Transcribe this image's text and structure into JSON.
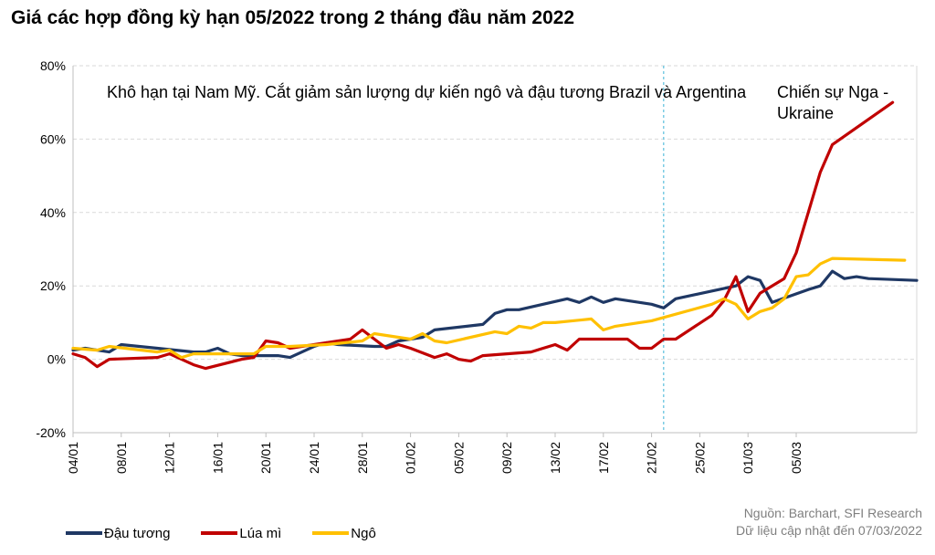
{
  "title": "Giá các hợp đồng kỳ hạn 05/2022 trong 2 tháng đầu năm 2022",
  "annotations": {
    "drought": "Khô hạn tại Nam Mỹ. Cắt giảm sản lượng dự kiến ngô và đậu tương Brazil và Argentina",
    "war": "Chiến sự Nga - Ukraine"
  },
  "source": {
    "line1": "Nguồn: Barchart, SFI Research",
    "line2": "Dữ liệu cập nhật đến 07/03/2022"
  },
  "colors": {
    "soy": "#1f3864",
    "wheat": "#c00000",
    "corn": "#ffc000",
    "grid": "#d9d9d9",
    "axis": "#bfbfbf",
    "event_line": "#5bc0de"
  },
  "chart_data": {
    "type": "line",
    "title": "Giá các hợp đồng kỳ hạn 05/2022 trong 2 tháng đầu năm 2022",
    "xlabel": "",
    "ylabel": "",
    "ylim": [
      -20,
      80
    ],
    "yticks": [
      -20,
      0,
      20,
      40,
      60,
      80
    ],
    "ytick_labels": [
      "-20%",
      "0%",
      "20%",
      "40%",
      "60%",
      "80%"
    ],
    "xtick_labels": [
      "04/01",
      "08/01",
      "12/01",
      "16/01",
      "20/01",
      "24/01",
      "28/01",
      "01/02",
      "05/02",
      "09/02",
      "13/02",
      "17/02",
      "21/02",
      "25/02",
      "01/03",
      "05/03"
    ],
    "x_end_day": 66,
    "event_day": 52,
    "grid": "horizontal dashed",
    "legend_position": "bottom-left",
    "series": [
      {
        "name": "Đậu tương",
        "color": "#1f3864",
        "points": [
          [
            3,
            2.5
          ],
          [
            4,
            3
          ],
          [
            5,
            2.5
          ],
          [
            6,
            2
          ],
          [
            7,
            4
          ],
          [
            10,
            3
          ],
          [
            13,
            2
          ],
          [
            14,
            2
          ],
          [
            15,
            3
          ],
          [
            16,
            1.5
          ],
          [
            17,
            1
          ],
          [
            20,
            1
          ],
          [
            21,
            0.5
          ],
          [
            23,
            3.5
          ],
          [
            24,
            4.5
          ],
          [
            25,
            4
          ],
          [
            28,
            3.5
          ],
          [
            29,
            3.5
          ],
          [
            30,
            5
          ],
          [
            31,
            5.5
          ],
          [
            32,
            6
          ],
          [
            33,
            8
          ],
          [
            37,
            9.5
          ],
          [
            38,
            12.5
          ],
          [
            39,
            13.5
          ],
          [
            40,
            13.5
          ],
          [
            44,
            16.5
          ],
          [
            45,
            15.5
          ],
          [
            46,
            17
          ],
          [
            47,
            15.5
          ],
          [
            48,
            16.5
          ],
          [
            51,
            15
          ],
          [
            52,
            14
          ],
          [
            53,
            16.5
          ],
          [
            58,
            20
          ],
          [
            59,
            22.5
          ],
          [
            60,
            21.5
          ],
          [
            61,
            15.5
          ],
          [
            64,
            19
          ],
          [
            65,
            20
          ],
          [
            66,
            24
          ],
          [
            67,
            22
          ],
          [
            68,
            22.5
          ],
          [
            69,
            22
          ],
          [
            73,
            21.5
          ]
        ]
      },
      {
        "name": "Lúa mì",
        "color": "#c00000",
        "points": [
          [
            3,
            1.5
          ],
          [
            4,
            0.5
          ],
          [
            5,
            -2
          ],
          [
            6,
            0
          ],
          [
            10,
            0.5
          ],
          [
            11,
            1.5
          ],
          [
            12,
            0
          ],
          [
            13,
            -1.5
          ],
          [
            14,
            -2.5
          ],
          [
            17,
            0
          ],
          [
            18,
            0.5
          ],
          [
            19,
            5
          ],
          [
            20,
            4.5
          ],
          [
            21,
            3
          ],
          [
            24,
            4.5
          ],
          [
            26,
            5.5
          ],
          [
            27,
            8
          ],
          [
            28,
            5.5
          ],
          [
            29,
            3
          ],
          [
            30,
            4
          ],
          [
            31,
            3
          ],
          [
            33,
            0.5
          ],
          [
            34,
            1.5
          ],
          [
            35,
            0
          ],
          [
            36,
            -0.5
          ],
          [
            37,
            1
          ],
          [
            41,
            2
          ],
          [
            42,
            3
          ],
          [
            43,
            4
          ],
          [
            44,
            2.5
          ],
          [
            45,
            5.5
          ],
          [
            49,
            5.5
          ],
          [
            50,
            3
          ],
          [
            51,
            3
          ],
          [
            52,
            5.5
          ],
          [
            53,
            5.5
          ],
          [
            56,
            12
          ],
          [
            57,
            16
          ],
          [
            58,
            22.5
          ],
          [
            59,
            13
          ],
          [
            60,
            18
          ],
          [
            61,
            20
          ],
          [
            62,
            22
          ],
          [
            63,
            29
          ],
          [
            64,
            40
          ],
          [
            65,
            51
          ],
          [
            66,
            58.5
          ],
          [
            71,
            70
          ]
        ]
      },
      {
        "name": "Ngô",
        "color": "#ffc000",
        "points": [
          [
            3,
            3
          ],
          [
            5,
            2.5
          ],
          [
            6,
            3.5
          ],
          [
            10,
            2
          ],
          [
            11,
            2.5
          ],
          [
            12,
            0.5
          ],
          [
            13,
            1.5
          ],
          [
            18,
            1.5
          ],
          [
            19,
            3.5
          ],
          [
            20,
            3.5
          ],
          [
            21,
            3.5
          ],
          [
            24,
            4
          ],
          [
            27,
            5
          ],
          [
            28,
            7
          ],
          [
            31,
            5.5
          ],
          [
            32,
            7
          ],
          [
            33,
            5
          ],
          [
            34,
            4.5
          ],
          [
            38,
            7.5
          ],
          [
            39,
            7
          ],
          [
            40,
            9
          ],
          [
            41,
            8.5
          ],
          [
            42,
            10
          ],
          [
            43,
            10
          ],
          [
            46,
            11
          ],
          [
            47,
            8
          ],
          [
            48,
            9
          ],
          [
            49,
            9.5
          ],
          [
            50,
            10
          ],
          [
            51,
            10.5
          ],
          [
            56,
            15
          ],
          [
            57,
            16.5
          ],
          [
            58,
            15
          ],
          [
            59,
            11
          ],
          [
            60,
            13
          ],
          [
            61,
            14
          ],
          [
            62,
            16.5
          ],
          [
            63,
            22.5
          ],
          [
            64,
            23
          ],
          [
            65,
            26
          ],
          [
            66,
            27.5
          ],
          [
            72,
            27
          ]
        ]
      }
    ]
  }
}
